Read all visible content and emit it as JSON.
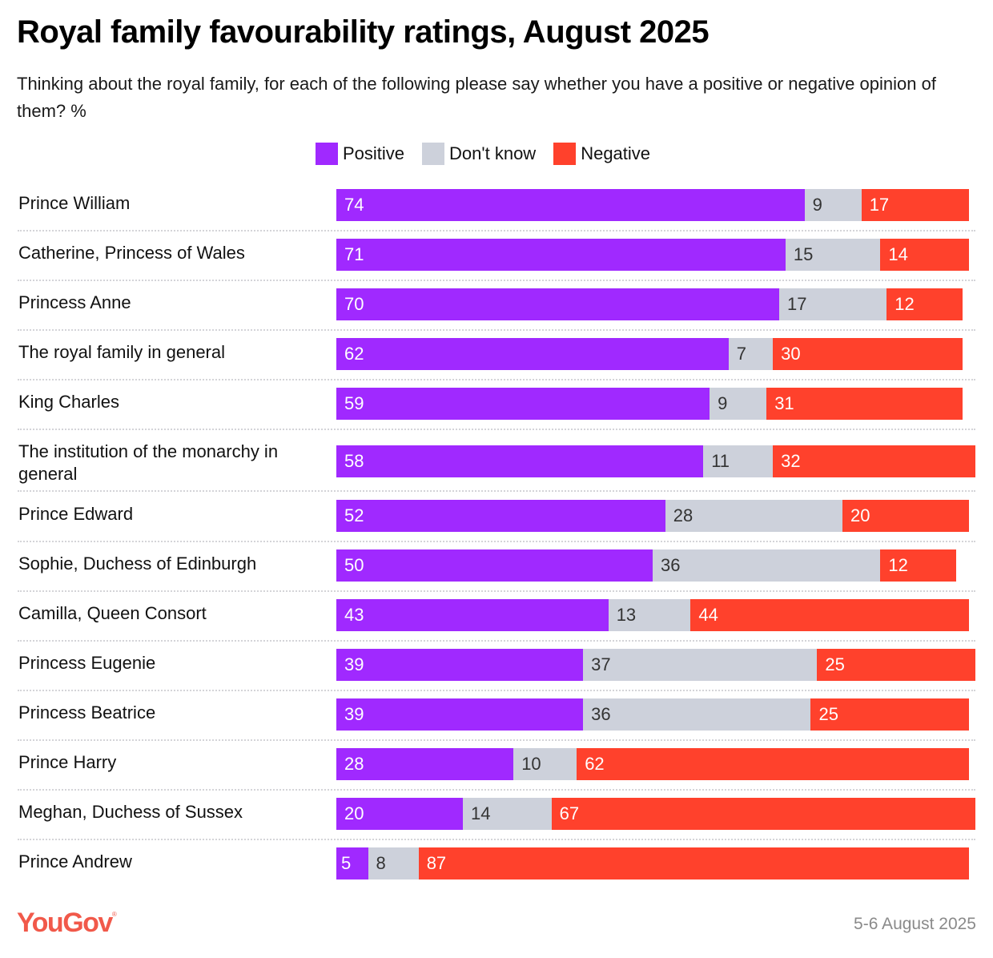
{
  "header": {
    "title": "Royal family favourability ratings, August 2025",
    "subtitle": "Thinking about the royal family, for each of the following please say whether you have a positive or negative opinion of them? %"
  },
  "colors": {
    "positive": "#a029ff",
    "dont_know": "#cdd1db",
    "negative": "#ff412c",
    "brand": "#f1594a"
  },
  "footer": {
    "logo": "YouGov",
    "logo_mark": "®",
    "date": "5-6 August 2025"
  },
  "chart_data": {
    "type": "bar",
    "orientation": "horizontal-stacked",
    "title": "Royal family favourability ratings, August 2025",
    "subtitle": "Thinking about the royal family, for each of the following please say whether you have a positive or negative opinion of them? %",
    "xlabel": "",
    "ylabel": "",
    "xlim": [
      0,
      100
    ],
    "grid": false,
    "legend_position": "top-center",
    "legend": [
      "Positive",
      "Don't know",
      "Negative"
    ],
    "categories": [
      "Prince William",
      "Catherine, Princess of Wales",
      "Princess Anne",
      "The royal family in general",
      "King Charles",
      "The institution of the monarchy in general",
      "Prince Edward",
      "Sophie, Duchess of Edinburgh",
      "Camilla, Queen Consort",
      "Princess Eugenie",
      "Princess Beatrice",
      "Prince Harry",
      "Meghan, Duchess of Sussex",
      "Prince Andrew"
    ],
    "series": [
      {
        "name": "Positive",
        "key": "positive",
        "values": [
          74,
          71,
          70,
          62,
          59,
          58,
          52,
          50,
          43,
          39,
          39,
          28,
          20,
          5
        ]
      },
      {
        "name": "Don't know",
        "key": "dont_know",
        "values": [
          9,
          15,
          17,
          7,
          9,
          11,
          28,
          36,
          13,
          37,
          36,
          10,
          14,
          8
        ]
      },
      {
        "name": "Negative",
        "key": "negative",
        "values": [
          17,
          14,
          12,
          30,
          31,
          32,
          20,
          12,
          44,
          25,
          25,
          62,
          67,
          87
        ]
      }
    ]
  }
}
